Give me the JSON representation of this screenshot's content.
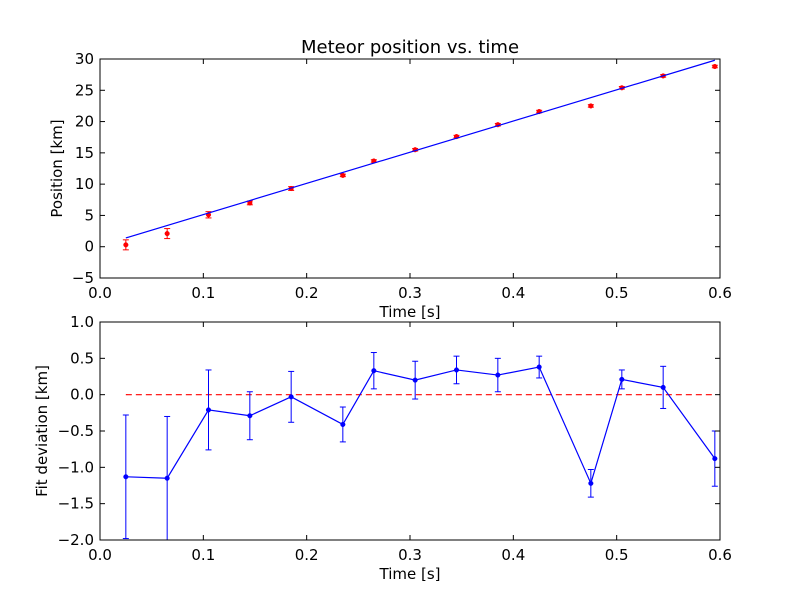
{
  "chart_data": [
    {
      "type": "scatter",
      "title": "Meteor position vs. time",
      "xlabel": "Time [s]",
      "ylabel": "Position [km]",
      "xlim": [
        0.0,
        0.6
      ],
      "ylim": [
        -5,
        30
      ],
      "x_ticks": [
        "0.0",
        "0.1",
        "0.2",
        "0.3",
        "0.4",
        "0.5",
        "0.6"
      ],
      "y_ticks": [
        "−5",
        "0",
        "5",
        "10",
        "15",
        "20",
        "25",
        "30"
      ],
      "x_tick_values": [
        0.0,
        0.1,
        0.2,
        0.3,
        0.4,
        0.5,
        0.6
      ],
      "y_tick_values": [
        -5,
        0,
        5,
        10,
        15,
        20,
        25,
        30
      ],
      "grid": false,
      "series": [
        {
          "kind": "errorbar",
          "color": "#ff0000",
          "x": [
            0.025,
            0.065,
            0.105,
            0.145,
            0.185,
            0.235,
            0.265,
            0.305,
            0.345,
            0.385,
            0.425,
            0.475,
            0.505,
            0.545,
            0.595
          ],
          "y": [
            0.3,
            2.1,
            5.1,
            7.0,
            9.3,
            11.4,
            13.7,
            15.5,
            17.6,
            19.5,
            21.6,
            22.5,
            25.4,
            27.3,
            28.8
          ],
          "yerr": [
            0.8,
            0.8,
            0.5,
            0.3,
            0.3,
            0.2,
            0.2,
            0.2,
            0.2,
            0.2,
            0.2,
            0.2,
            0.2,
            0.2,
            0.2
          ]
        },
        {
          "kind": "fit-line",
          "color": "#0000ff",
          "x": [
            0.025,
            0.595
          ],
          "y": [
            1.4,
            29.8
          ]
        }
      ]
    },
    {
      "type": "line",
      "title": "",
      "xlabel": "Time [s]",
      "ylabel": "Fit deviation [km]",
      "xlim": [
        0.0,
        0.6
      ],
      "ylim": [
        -2.0,
        1.0
      ],
      "x_ticks": [
        "0.0",
        "0.1",
        "0.2",
        "0.3",
        "0.4",
        "0.5",
        "0.6"
      ],
      "y_ticks": [
        "−2.0",
        "−1.5",
        "−1.0",
        "−0.5",
        "0.0",
        "0.5",
        "1.0"
      ],
      "x_tick_values": [
        0.0,
        0.1,
        0.2,
        0.3,
        0.4,
        0.5,
        0.6
      ],
      "y_tick_values": [
        -2.0,
        -1.5,
        -1.0,
        -0.5,
        0.0,
        0.5,
        1.0
      ],
      "grid": false,
      "reference_line": {
        "y": 0.0,
        "color": "#ff0000",
        "style": "dashed"
      },
      "series": [
        {
          "kind": "errorbar-line",
          "color": "#0000ff",
          "x": [
            0.025,
            0.065,
            0.105,
            0.145,
            0.185,
            0.235,
            0.265,
            0.305,
            0.345,
            0.385,
            0.425,
            0.475,
            0.505,
            0.545,
            0.595
          ],
          "y": [
            -1.13,
            -1.15,
            -0.21,
            -0.29,
            -0.03,
            -0.41,
            0.33,
            0.2,
            0.34,
            0.27,
            0.38,
            -1.22,
            0.21,
            0.1,
            -0.88
          ],
          "yerr": [
            0.85,
            0.85,
            0.55,
            0.33,
            0.35,
            0.24,
            0.25,
            0.26,
            0.19,
            0.23,
            0.15,
            0.19,
            0.13,
            0.29,
            0.38
          ]
        }
      ]
    }
  ]
}
